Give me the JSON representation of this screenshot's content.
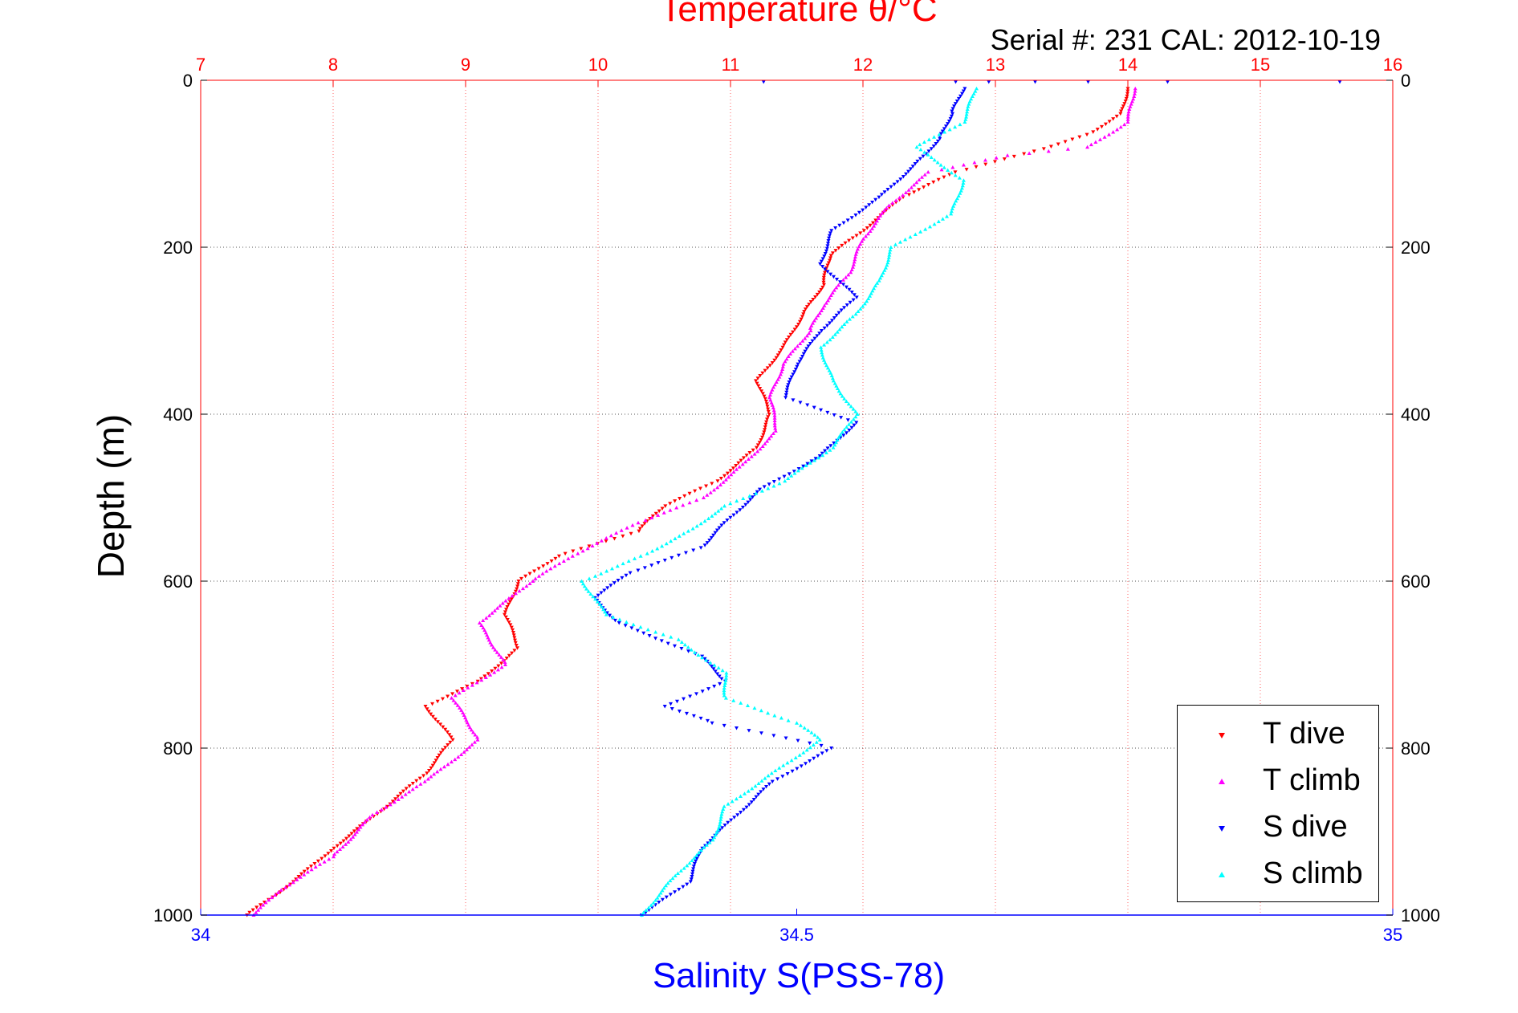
{
  "chart_data": {
    "type": "scatter",
    "title": "Temperature θ/°C",
    "subtitle": "Serial #: 231  CAL: 2012-10-19",
    "top_axis": {
      "label": "Temperature θ/°C",
      "range": [
        7,
        16
      ],
      "ticks": [
        "7",
        "8",
        "9",
        "10",
        "11",
        "12",
        "13",
        "14",
        "15",
        "16"
      ],
      "color": "#ff0000"
    },
    "bottom_axis": {
      "label": "Salinity S(PSS-78)",
      "range": [
        34,
        35
      ],
      "ticks": [
        "34",
        "34.5",
        "35"
      ],
      "color": "#0000ff"
    },
    "y_axis": {
      "label": "Depth (m)",
      "range": [
        0,
        1000
      ],
      "reversed": true,
      "ticks": [
        "0",
        "200",
        "400",
        "600",
        "800",
        "1000"
      ]
    },
    "grid": true,
    "legend_position": "bottom-right",
    "series": [
      {
        "name": "T dive",
        "axis": "temperature",
        "color": "#ff0000",
        "marker": "triangle-down",
        "points": [
          [
            14.0,
            10
          ],
          [
            13.95,
            40
          ],
          [
            13.7,
            65
          ],
          [
            13.3,
            85
          ],
          [
            12.7,
            110
          ],
          [
            12.3,
            140
          ],
          [
            12.0,
            180
          ],
          [
            11.75,
            210
          ],
          [
            11.7,
            245
          ],
          [
            11.55,
            280
          ],
          [
            11.4,
            320
          ],
          [
            11.2,
            360
          ],
          [
            11.3,
            400
          ],
          [
            11.2,
            440
          ],
          [
            10.9,
            480
          ],
          [
            10.5,
            510
          ],
          [
            10.3,
            540
          ],
          [
            9.7,
            570
          ],
          [
            9.4,
            600
          ],
          [
            9.3,
            640
          ],
          [
            9.4,
            680
          ],
          [
            9.1,
            720
          ],
          [
            8.7,
            750
          ],
          [
            8.9,
            790
          ],
          [
            8.7,
            830
          ],
          [
            8.4,
            870
          ],
          [
            8.0,
            920
          ],
          [
            7.7,
            960
          ],
          [
            7.35,
            1000
          ]
        ]
      },
      {
        "name": "T climb",
        "axis": "temperature",
        "color": "#ff00ff",
        "marker": "triangle-up",
        "points": [
          [
            14.05,
            10
          ],
          [
            14.0,
            50
          ],
          [
            13.7,
            80
          ],
          [
            13.1,
            90
          ],
          [
            12.5,
            110
          ],
          [
            12.2,
            150
          ],
          [
            12.0,
            190
          ],
          [
            11.9,
            230
          ],
          [
            11.7,
            270
          ],
          [
            11.6,
            300
          ],
          [
            11.4,
            340
          ],
          [
            11.3,
            380
          ],
          [
            11.35,
            420
          ],
          [
            11.1,
            460
          ],
          [
            10.8,
            500
          ],
          [
            10.3,
            530
          ],
          [
            9.8,
            570
          ],
          [
            9.5,
            600
          ],
          [
            9.1,
            650
          ],
          [
            9.3,
            700
          ],
          [
            8.9,
            740
          ],
          [
            9.1,
            790
          ],
          [
            8.7,
            840
          ],
          [
            8.3,
            880
          ],
          [
            8.0,
            930
          ],
          [
            7.6,
            970
          ],
          [
            7.4,
            1000
          ]
        ]
      },
      {
        "name": "S dive",
        "axis": "salinity",
        "color": "#0000ff",
        "marker": "triangle-down",
        "points": [
          [
            34.64,
            10
          ],
          [
            34.63,
            40
          ],
          [
            34.62,
            70
          ],
          [
            34.6,
            100
          ],
          [
            34.57,
            140
          ],
          [
            34.53,
            180
          ],
          [
            34.52,
            220
          ],
          [
            34.55,
            260
          ],
          [
            34.52,
            300
          ],
          [
            34.5,
            340
          ],
          [
            34.49,
            380
          ],
          [
            34.55,
            410
          ],
          [
            34.52,
            450
          ],
          [
            34.47,
            490
          ],
          [
            34.44,
            530
          ],
          [
            34.42,
            560
          ],
          [
            34.36,
            590
          ],
          [
            34.33,
            620
          ],
          [
            34.35,
            650
          ],
          [
            34.42,
            690
          ],
          [
            34.44,
            720
          ],
          [
            34.39,
            750
          ],
          [
            34.43,
            770
          ],
          [
            34.53,
            800
          ],
          [
            34.48,
            840
          ],
          [
            34.45,
            880
          ],
          [
            34.42,
            920
          ],
          [
            34.41,
            960
          ],
          [
            34.37,
            1000
          ]
        ]
      },
      {
        "name": "S climb",
        "axis": "salinity",
        "color": "#00ffff",
        "marker": "triangle-up",
        "points": [
          [
            34.65,
            10
          ],
          [
            34.64,
            50
          ],
          [
            34.6,
            80
          ],
          [
            34.64,
            120
          ],
          [
            34.63,
            160
          ],
          [
            34.58,
            200
          ],
          [
            34.57,
            240
          ],
          [
            34.55,
            280
          ],
          [
            34.52,
            320
          ],
          [
            34.53,
            360
          ],
          [
            34.55,
            400
          ],
          [
            34.53,
            440
          ],
          [
            34.49,
            480
          ],
          [
            34.44,
            510
          ],
          [
            34.41,
            540
          ],
          [
            34.37,
            570
          ],
          [
            34.32,
            600
          ],
          [
            34.34,
            640
          ],
          [
            34.4,
            670
          ],
          [
            34.44,
            710
          ],
          [
            34.44,
            740
          ],
          [
            34.5,
            770
          ],
          [
            34.52,
            790
          ],
          [
            34.48,
            830
          ],
          [
            34.44,
            870
          ],
          [
            34.43,
            910
          ],
          [
            34.4,
            950
          ],
          [
            34.37,
            1000
          ]
        ]
      },
      {
        "name": "",
        "axis": "temperature",
        "color": "#0000ff",
        "marker": "triangle-down",
        "points": [
          [
            11.25,
            0
          ],
          [
            12.7,
            0
          ],
          [
            12.95,
            0
          ],
          [
            13.3,
            0
          ],
          [
            13.7,
            0
          ],
          [
            14.3,
            0
          ],
          [
            15.6,
            0
          ]
        ]
      }
    ]
  }
}
